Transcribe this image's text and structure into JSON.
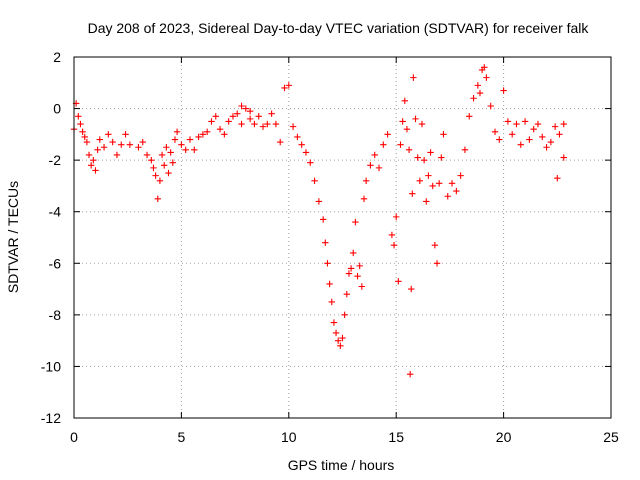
{
  "chart_data": {
    "type": "scatter",
    "title": "Day 208 of 2023, Sidereal Day-to-day VTEC variation (SDTVAR) for receiver falk",
    "xlabel": "GPS time / hours",
    "ylabel": "SDTVAR / TECUs",
    "xlim": [
      0,
      25
    ],
    "ylim": [
      -12,
      2
    ],
    "xticks": [
      "0",
      "5",
      "10",
      "15",
      "20",
      "25"
    ],
    "yticks": [
      "2",
      "0",
      "-2",
      "-4",
      "-6",
      "-8",
      "-10",
      "-12"
    ],
    "grid": true,
    "marker": "+",
    "series": [
      {
        "name": "SDTVAR",
        "color": "#ff0000",
        "x": [
          0.0,
          0.1,
          0.2,
          0.3,
          0.4,
          0.5,
          0.6,
          0.7,
          0.8,
          0.9,
          1.0,
          1.1,
          1.2,
          1.4,
          1.6,
          1.8,
          2.0,
          2.2,
          2.4,
          2.6,
          3.0,
          3.2,
          3.4,
          3.6,
          3.7,
          3.8,
          3.9,
          4.0,
          4.1,
          4.2,
          4.3,
          4.4,
          4.5,
          4.6,
          4.7,
          4.8,
          5.0,
          5.2,
          5.4,
          5.6,
          5.8,
          6.0,
          6.2,
          6.4,
          6.6,
          6.8,
          7.0,
          7.2,
          7.4,
          7.6,
          7.8,
          8.0,
          8.2,
          8.4,
          8.6,
          8.8,
          9.0,
          9.2,
          9.4,
          9.6,
          9.8,
          10.0,
          10.2,
          10.4,
          10.6,
          10.8,
          11.0,
          11.2,
          11.4,
          11.6,
          11.7,
          11.8,
          11.9,
          12.0,
          12.1,
          12.2,
          12.3,
          12.4,
          12.5,
          12.6,
          12.7,
          12.8,
          12.9,
          13.0,
          13.1,
          13.2,
          13.3,
          13.4,
          13.5,
          13.6,
          13.8,
          14.0,
          14.2,
          14.4,
          14.6,
          14.8,
          14.9,
          15.0,
          15.1,
          15.2,
          15.3,
          15.4,
          15.5,
          15.6,
          15.65,
          15.7,
          15.75,
          15.8,
          15.9,
          16.0,
          16.1,
          16.2,
          16.3,
          16.4,
          16.5,
          16.6,
          16.7,
          16.8,
          16.9,
          17.0,
          17.1,
          17.2,
          17.4,
          17.6,
          17.8,
          18.0,
          18.2,
          18.4,
          18.6,
          18.8,
          19.0,
          19.2,
          19.4,
          19.6,
          19.8,
          20.0,
          20.2,
          20.4,
          20.6,
          20.8,
          21.0,
          21.2,
          21.4,
          21.6,
          21.8,
          22.0,
          22.2,
          22.4,
          22.6,
          22.8,
          22.5,
          22.8,
          7.8,
          8.2,
          18.9,
          19.1
        ],
        "y": [
          -0.8,
          0.2,
          -0.3,
          -0.6,
          -0.9,
          -1.1,
          -1.3,
          -1.8,
          -2.2,
          -2.0,
          -2.4,
          -1.6,
          -1.2,
          -1.5,
          -1.0,
          -1.3,
          -1.8,
          -1.4,
          -1.0,
          -1.4,
          -1.5,
          -1.3,
          -1.8,
          -2.0,
          -2.3,
          -2.6,
          -3.5,
          -2.8,
          -1.8,
          -2.2,
          -1.5,
          -2.5,
          -1.7,
          -2.1,
          -1.2,
          -0.9,
          -1.4,
          -1.6,
          -1.2,
          -1.6,
          -1.1,
          -1.0,
          -0.9,
          -0.5,
          -0.3,
          -0.8,
          -1.0,
          -0.5,
          -0.3,
          -0.2,
          -0.6,
          0.0,
          -0.4,
          -0.6,
          -0.3,
          -0.7,
          -0.6,
          -0.2,
          -0.6,
          -1.3,
          0.8,
          0.9,
          -0.7,
          -1.1,
          -1.4,
          -1.7,
          -2.1,
          -2.8,
          -3.6,
          -4.3,
          -5.2,
          -6.0,
          -6.8,
          -7.5,
          -8.3,
          -8.7,
          -9.0,
          -9.2,
          -8.9,
          -8.0,
          -7.2,
          -6.4,
          -6.2,
          -5.6,
          -4.4,
          -6.5,
          -6.1,
          -6.9,
          -3.5,
          -2.8,
          -2.2,
          -1.8,
          -2.3,
          -1.4,
          -1.0,
          -4.9,
          -5.3,
          -4.2,
          -6.7,
          -1.4,
          -0.5,
          0.3,
          -0.8,
          -1.6,
          -10.3,
          -7.0,
          -3.3,
          1.2,
          -0.4,
          -1.9,
          -2.8,
          -0.6,
          -2.0,
          -3.6,
          -2.6,
          -1.7,
          -3.0,
          -5.3,
          -6.0,
          -2.9,
          -1.9,
          -1.0,
          -3.4,
          -2.9,
          -3.2,
          -2.6,
          -1.6,
          -0.3,
          0.4,
          0.9,
          1.5,
          1.2,
          0.1,
          -0.9,
          -1.2,
          0.7,
          -0.5,
          -1.0,
          -0.6,
          -1.4,
          -0.5,
          -1.2,
          -0.8,
          -0.6,
          -1.1,
          -1.5,
          -1.3,
          -0.7,
          -1.0,
          -1.9,
          -2.7,
          -0.6,
          0.1,
          -0.1,
          0.6,
          1.6
        ]
      }
    ]
  }
}
